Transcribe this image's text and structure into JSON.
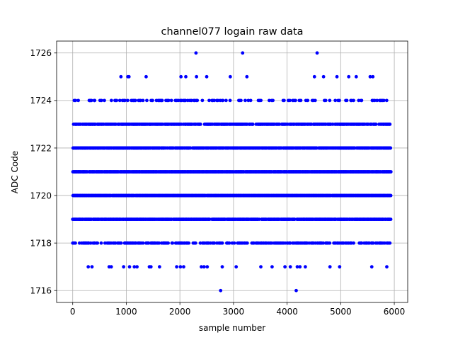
{
  "colors": {
    "marker": "#0000ff",
    "grid": "#b0b0b0",
    "axis": "#000000"
  },
  "chart_data": {
    "type": "scatter",
    "title": "channel077 logain raw data",
    "xlabel": "sample number",
    "ylabel": "ADC Code",
    "xlim": [
      -300,
      6250
    ],
    "ylim": [
      1715.5,
      1726.5
    ],
    "xticks": [
      0,
      1000,
      2000,
      3000,
      4000,
      5000,
      6000
    ],
    "yticks": [
      1716,
      1718,
      1720,
      1722,
      1724,
      1726
    ],
    "xtick_labels": [
      "0",
      "1000",
      "2000",
      "3000",
      "4000",
      "5000",
      "6000"
    ],
    "ytick_labels": [
      "1716",
      "1718",
      "1720",
      "1722",
      "1724",
      "1726"
    ],
    "grid": true,
    "n_samples": 5936,
    "dense_levels": [
      1718,
      1719,
      1720,
      1721,
      1722,
      1723,
      1724
    ],
    "series": [
      {
        "name": "",
        "marker_color": "#0000ff",
        "points": [
          {
            "x": 2300,
            "y": 1726
          },
          {
            "x": 3170,
            "y": 1726
          },
          {
            "x": 4560,
            "y": 1726
          },
          {
            "x": 900,
            "y": 1725
          },
          {
            "x": 1030,
            "y": 1725
          },
          {
            "x": 1050,
            "y": 1725
          },
          {
            "x": 1370,
            "y": 1725
          },
          {
            "x": 2020,
            "y": 1725
          },
          {
            "x": 2110,
            "y": 1725
          },
          {
            "x": 2310,
            "y": 1725
          },
          {
            "x": 2500,
            "y": 1725
          },
          {
            "x": 2940,
            "y": 1725
          },
          {
            "x": 3250,
            "y": 1725
          },
          {
            "x": 4510,
            "y": 1725
          },
          {
            "x": 4680,
            "y": 1725
          },
          {
            "x": 4930,
            "y": 1725
          },
          {
            "x": 5150,
            "y": 1725
          },
          {
            "x": 5290,
            "y": 1725
          },
          {
            "x": 5550,
            "y": 1725
          },
          {
            "x": 5600,
            "y": 1725
          },
          {
            "x": 290,
            "y": 1717
          },
          {
            "x": 360,
            "y": 1717
          },
          {
            "x": 680,
            "y": 1717
          },
          {
            "x": 720,
            "y": 1717
          },
          {
            "x": 950,
            "y": 1717
          },
          {
            "x": 1060,
            "y": 1717
          },
          {
            "x": 1150,
            "y": 1717
          },
          {
            "x": 1200,
            "y": 1717
          },
          {
            "x": 1430,
            "y": 1717
          },
          {
            "x": 1460,
            "y": 1717
          },
          {
            "x": 1620,
            "y": 1717
          },
          {
            "x": 1940,
            "y": 1717
          },
          {
            "x": 2010,
            "y": 1717
          },
          {
            "x": 2070,
            "y": 1717
          },
          {
            "x": 2400,
            "y": 1717
          },
          {
            "x": 2450,
            "y": 1717
          },
          {
            "x": 2510,
            "y": 1717
          },
          {
            "x": 2790,
            "y": 1717
          },
          {
            "x": 3050,
            "y": 1717
          },
          {
            "x": 3510,
            "y": 1717
          },
          {
            "x": 3720,
            "y": 1717
          },
          {
            "x": 3960,
            "y": 1717
          },
          {
            "x": 4060,
            "y": 1717
          },
          {
            "x": 4190,
            "y": 1717
          },
          {
            "x": 4240,
            "y": 1717
          },
          {
            "x": 4340,
            "y": 1717
          },
          {
            "x": 4800,
            "y": 1717
          },
          {
            "x": 4980,
            "y": 1717
          },
          {
            "x": 5580,
            "y": 1717
          },
          {
            "x": 5860,
            "y": 1717
          },
          {
            "x": 2760,
            "y": 1716
          },
          {
            "x": 4170,
            "y": 1716
          }
        ]
      }
    ]
  }
}
